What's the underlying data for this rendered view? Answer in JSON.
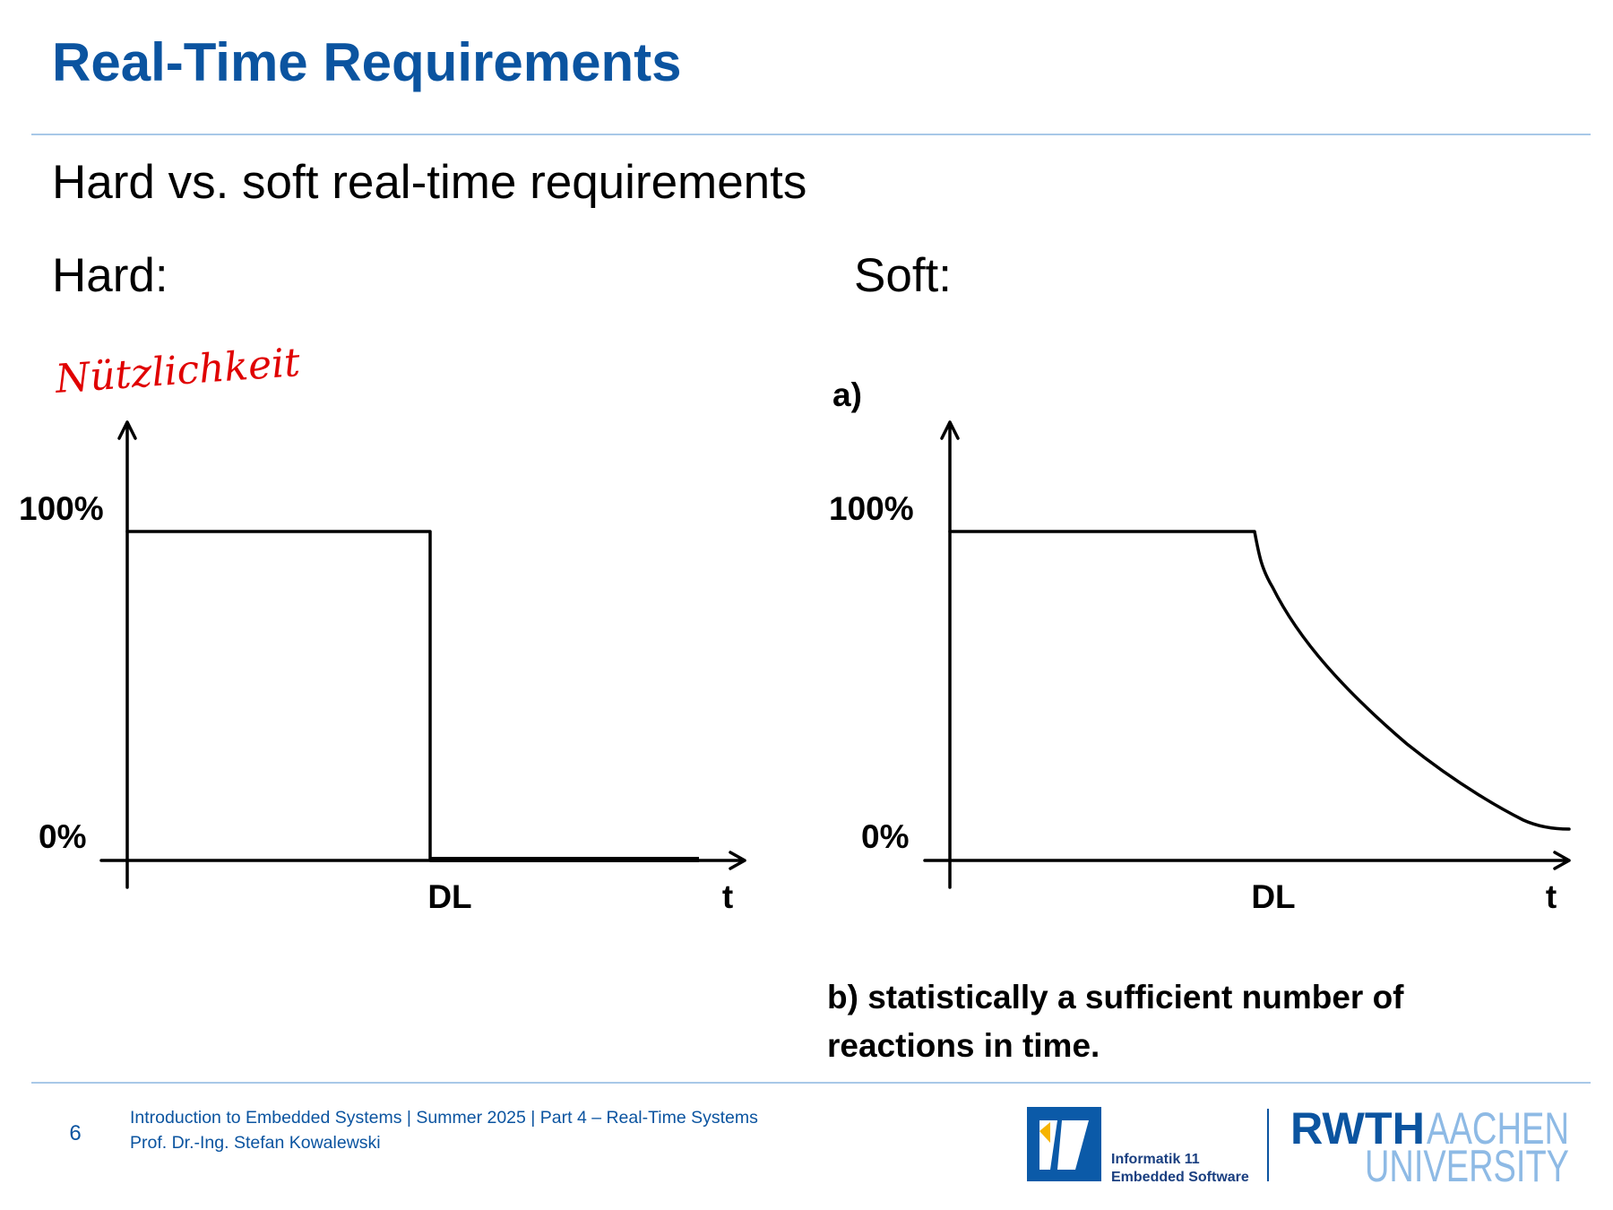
{
  "header": {
    "title": "Real-Time Requirements"
  },
  "subtitle": "Hard vs. soft real-time requirements",
  "hard": {
    "heading": "Hard:",
    "annotation": "Nützlichkeit",
    "label_high": "100%",
    "label_low": "0%",
    "label_deadline": "DL",
    "label_time": "t"
  },
  "soft": {
    "heading": "Soft:",
    "item_a": "a)",
    "label_high": "100%",
    "label_low": "0%",
    "label_deadline": "DL",
    "label_time": "t",
    "item_b": [
      "b) statistically a sufficient number of",
      "reactions in time."
    ]
  },
  "footer": {
    "page": "6",
    "lines": [
      "Introduction to Embedded Systems | Summer 2025 | Part 4 – Real-Time Systems",
      "Prof. Dr.-Ing. Stefan Kowalewski"
    ],
    "institute": [
      "Informatik 11",
      "Embedded Software"
    ],
    "university": [
      "RWTH",
      "AACHEN",
      "UNIVERSITY"
    ]
  }
}
